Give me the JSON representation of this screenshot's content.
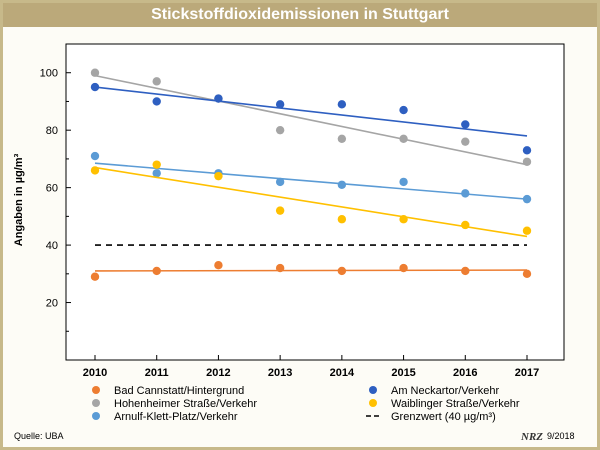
{
  "chart_data": {
    "type": "scatter",
    "title": "Stickstoffdioxidemissionen in Stuttgart",
    "xlabel": "",
    "ylabel": "Angaben in µg/m³",
    "x": [
      2010,
      2011,
      2012,
      2013,
      2014,
      2015,
      2016,
      2017
    ],
    "xlim": [
      2010,
      2017
    ],
    "ylim": [
      0,
      110
    ],
    "yticks": [
      20,
      40,
      60,
      80,
      100
    ],
    "series": [
      {
        "name": "Bad Cannstatt/Hintergrund",
        "color": "#ed7d31",
        "values": [
          29,
          31,
          33,
          32,
          31,
          32,
          31,
          30
        ],
        "trend": [
          31,
          31.3
        ]
      },
      {
        "name": "Hohenheimer Straße/Verkehr",
        "color": "#a5a5a5",
        "values": [
          100,
          97,
          91,
          80,
          77,
          77,
          76,
          69
        ],
        "trend": [
          99,
          68
        ]
      },
      {
        "name": "Arnulf-Klett-Platz/Verkehr",
        "color": "#5b9bd5",
        "values": [
          71,
          65,
          65,
          62,
          61,
          62,
          58,
          56
        ],
        "trend": [
          68.5,
          56
        ]
      },
      {
        "name": "Am Neckartor/Verkehr",
        "color": "#2e5fc1",
        "values": [
          95,
          90,
          91,
          89,
          89,
          87,
          82,
          73
        ],
        "trend": [
          95,
          78
        ]
      },
      {
        "name": "Waiblinger Straße/Verkehr",
        "color": "#ffc000",
        "values": [
          66,
          68,
          64,
          52,
          49,
          49,
          47,
          45
        ],
        "trend": [
          67,
          43
        ]
      }
    ],
    "reference_line": {
      "name": "Grenzwert (40 µg/m³)",
      "value": 40
    }
  },
  "footer": {
    "source": "Quelle: UBA",
    "logo": "NRZ",
    "date": "9/2018"
  }
}
